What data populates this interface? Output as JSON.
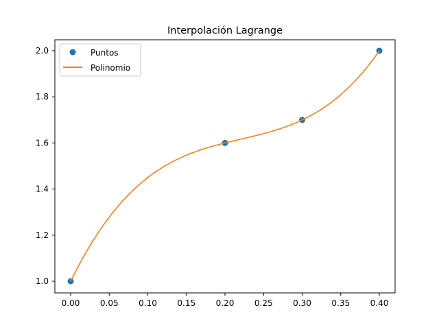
{
  "chart_data": {
    "type": "line",
    "title": "Interpolación Lagrange",
    "xlabel": "",
    "ylabel": "",
    "xlim": [
      -0.02,
      0.42
    ],
    "ylim": [
      0.95,
      2.05
    ],
    "xticks": [
      "0.00",
      "0.05",
      "0.10",
      "0.15",
      "0.20",
      "0.25",
      "0.30",
      "0.35",
      "0.40"
    ],
    "yticks": [
      "1.0",
      "1.2",
      "1.4",
      "1.6",
      "1.8",
      "2.0"
    ],
    "grid": false,
    "legend_position": "upper left",
    "series": [
      {
        "name": "Puntos",
        "style": "markers",
        "color": "#1f77b4",
        "x": [
          0.0,
          0.2,
          0.3,
          0.4
        ],
        "y": [
          1.0,
          1.6,
          1.7,
          2.0
        ]
      },
      {
        "name": "Polinomio",
        "style": "line",
        "color": "#ff7f0e",
        "x_range": [
          0.0,
          0.4
        ]
      }
    ]
  }
}
